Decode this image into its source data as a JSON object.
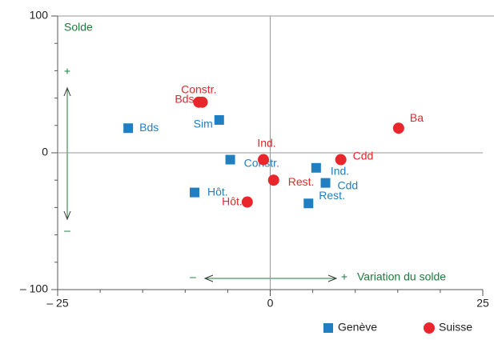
{
  "chart_data": {
    "type": "scatter",
    "annotations": {
      "y_title": "Solde",
      "y_plus": "+",
      "y_minus": "–",
      "x_minus": "–",
      "x_plus": "+",
      "x_title": "Variation du solde"
    },
    "xlim": [
      -25,
      25
    ],
    "ylim": [
      -100,
      100
    ],
    "xticks": [
      {
        "value": -25,
        "label": "– 25"
      },
      0,
      25
    ],
    "yticks": [
      100,
      0,
      {
        "value": -100,
        "label": "– 100"
      }
    ],
    "x_minor_ticks": [
      -20,
      -15,
      -10,
      -5,
      5,
      10,
      15,
      20
    ],
    "y_minor_ticks": [
      80,
      60,
      40,
      20,
      -20,
      -40,
      -60,
      -80
    ],
    "series": [
      {
        "name": "Genève",
        "color": "#1f7fc1",
        "marker": "square",
        "labels": [
          "Bds",
          "Sim",
          "Constr.",
          "Hôt.",
          "Ind.",
          "Cdd",
          "Rest."
        ],
        "x": [
          -16.7,
          -6.0,
          -4.7,
          -8.9,
          5.4,
          6.5,
          4.5
        ],
        "values": [
          18,
          24,
          -5,
          -29,
          -11,
          -22,
          -37
        ]
      },
      {
        "name": "Suisse",
        "color": "#e8262b",
        "marker": "circle",
        "labels": [
          "Constr.",
          "Bds",
          "Ba",
          "Ind.",
          "Cdd",
          "Rest.",
          "Hôt."
        ],
        "x": [
          -8.4,
          -8.0,
          15.1,
          -0.8,
          8.3,
          0.4,
          -2.7
        ],
        "values": [
          37,
          37,
          18,
          -5,
          -5,
          -20,
          -36
        ]
      }
    ]
  }
}
